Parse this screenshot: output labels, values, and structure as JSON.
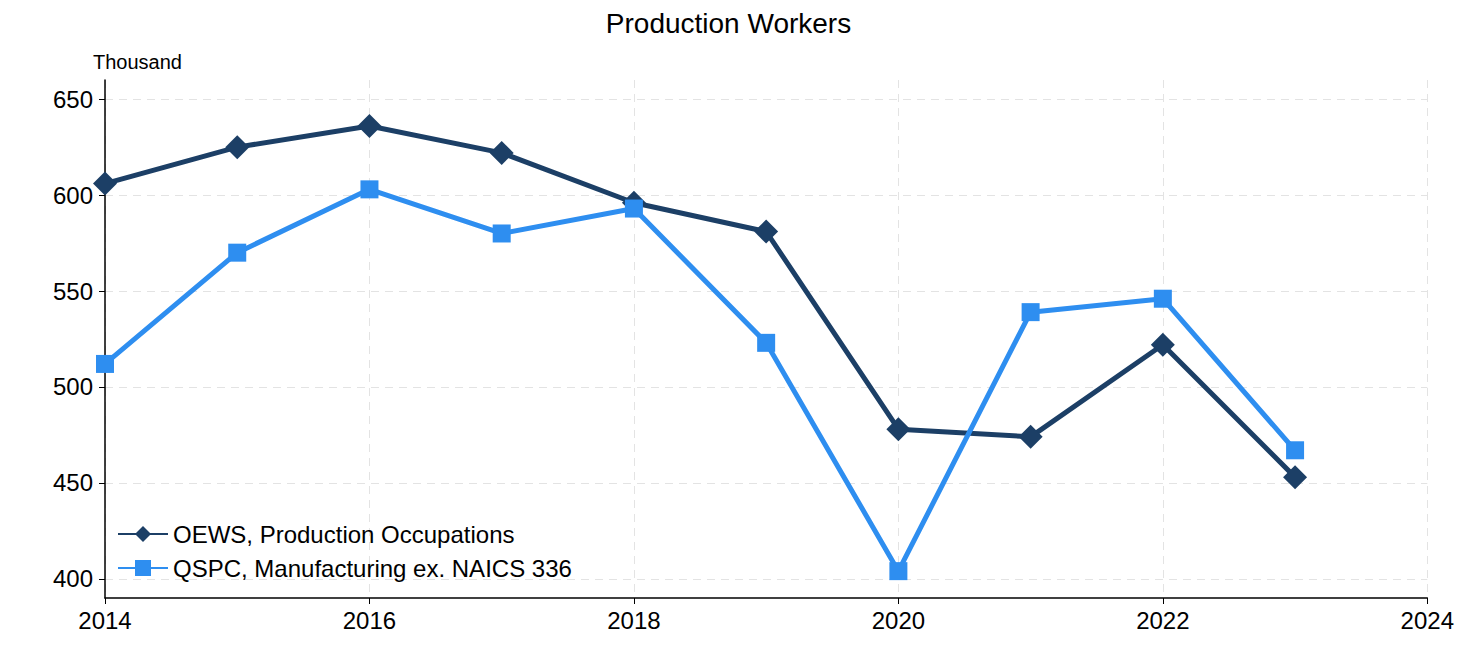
{
  "chart_data": {
    "type": "line",
    "title": "Production Workers",
    "y_label": "Thousand",
    "x": [
      2014,
      2015,
      2016,
      2017,
      2018,
      2019,
      2020,
      2021,
      2022,
      2023
    ],
    "series": [
      {
        "name": "OEWS, Production Occupations",
        "color": "#1c3f66",
        "marker": "diamond",
        "values": [
          606,
          625,
          636,
          622,
          596,
          581,
          478,
          474,
          522,
          453
        ]
      },
      {
        "name": "QSPC, Manufacturing ex. NAICS 336",
        "color": "#2e8ef0",
        "marker": "square",
        "values": [
          512,
          570,
          603,
          580,
          593,
          523,
          404,
          539,
          546,
          467
        ]
      }
    ],
    "xlim": [
      2014,
      2024
    ],
    "xticks": [
      2014,
      2016,
      2018,
      2020,
      2022,
      2024
    ],
    "ylim": [
      390,
      660
    ],
    "yticks": [
      400,
      450,
      500,
      550,
      600,
      650
    ],
    "grid": true,
    "legend": "lower left"
  }
}
